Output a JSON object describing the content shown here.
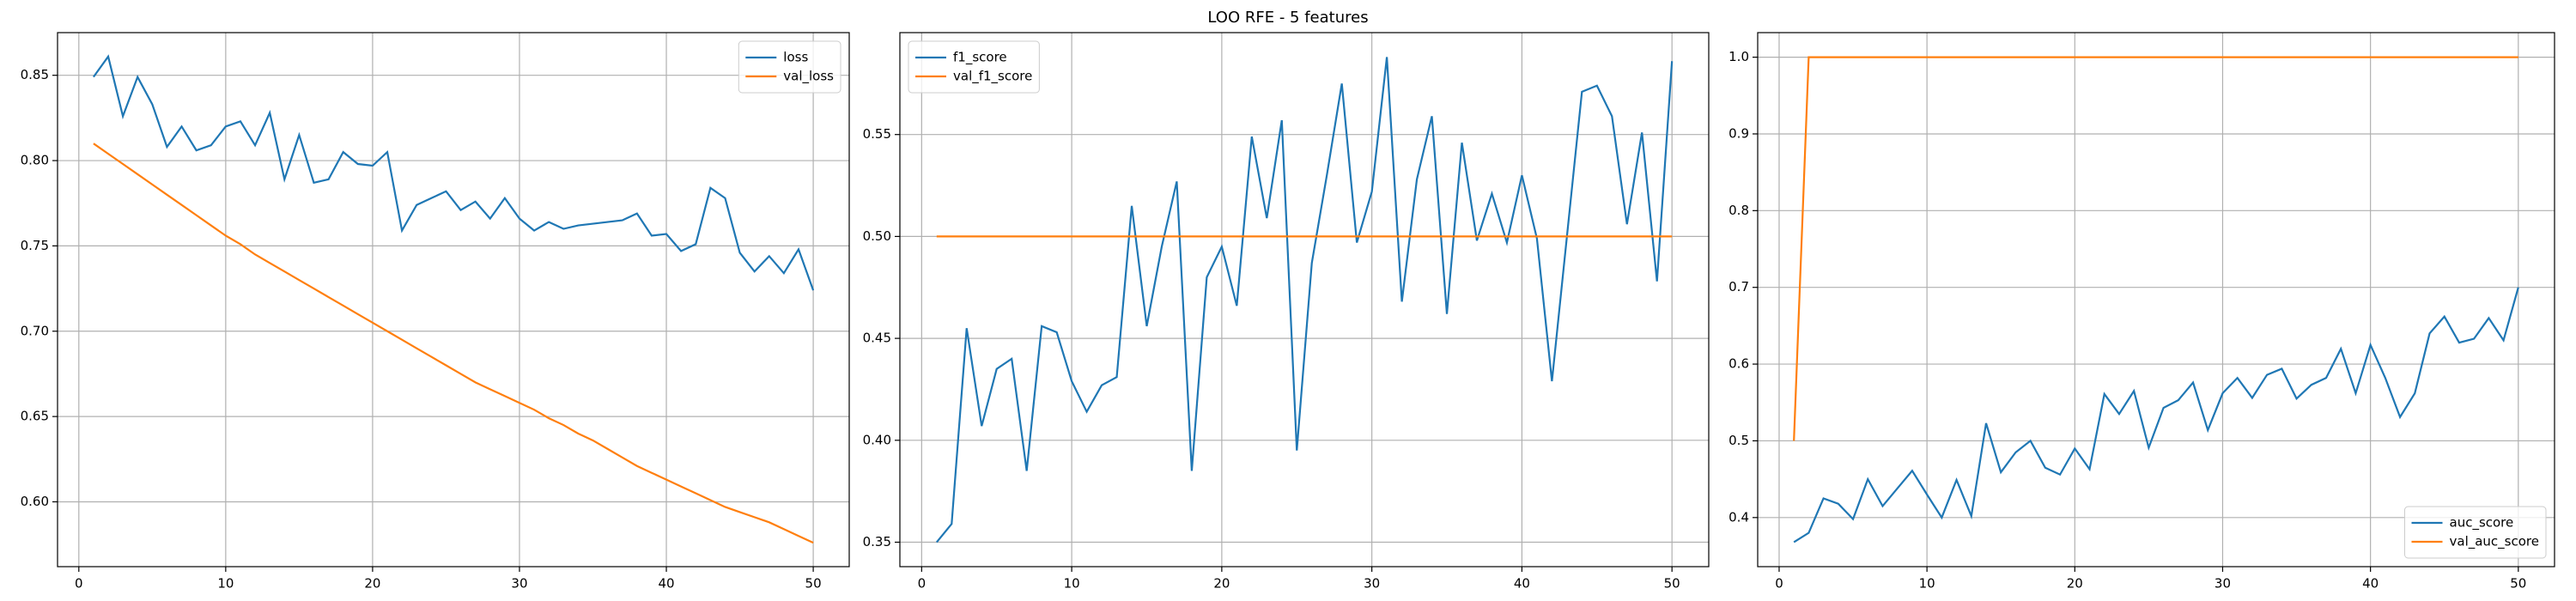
{
  "title": "LOO RFE - 5 features",
  "chart_data": [
    {
      "type": "line",
      "x": [
        1,
        2,
        3,
        4,
        5,
        6,
        7,
        8,
        9,
        10,
        11,
        12,
        13,
        14,
        15,
        16,
        17,
        18,
        19,
        20,
        21,
        22,
        23,
        24,
        25,
        26,
        27,
        28,
        29,
        30,
        31,
        32,
        33,
        34,
        35,
        36,
        37,
        38,
        39,
        40,
        41,
        42,
        43,
        44,
        45,
        46,
        47,
        48,
        49,
        50
      ],
      "series": [
        {
          "name": "loss",
          "color": "#1f77b4",
          "values": [
            0.849,
            0.861,
            0.826,
            0.849,
            0.833,
            0.808,
            0.82,
            0.806,
            0.809,
            0.82,
            0.823,
            0.809,
            0.828,
            0.789,
            0.815,
            0.787,
            0.789,
            0.805,
            0.798,
            0.797,
            0.805,
            0.759,
            0.774,
            0.778,
            0.782,
            0.771,
            0.776,
            0.766,
            0.778,
            0.766,
            0.759,
            0.764,
            0.76,
            0.762,
            0.763,
            0.764,
            0.765,
            0.769,
            0.756,
            0.757,
            0.747,
            0.751,
            0.784,
            0.778,
            0.746,
            0.735,
            0.744,
            0.734,
            0.748,
            0.724
          ]
        },
        {
          "name": "val_loss",
          "color": "#ff7f0e",
          "values": [
            0.81,
            0.804,
            0.798,
            0.792,
            0.786,
            0.78,
            0.774,
            0.768,
            0.762,
            0.756,
            0.751,
            0.745,
            0.74,
            0.735,
            0.73,
            0.725,
            0.72,
            0.715,
            0.71,
            0.705,
            0.7,
            0.695,
            0.69,
            0.685,
            0.68,
            0.675,
            0.67,
            0.666,
            0.662,
            0.658,
            0.654,
            0.649,
            0.645,
            0.64,
            0.636,
            0.631,
            0.626,
            0.621,
            0.617,
            0.613,
            0.609,
            0.605,
            0.601,
            0.597,
            0.594,
            0.591,
            0.588,
            0.584,
            0.58,
            0.576
          ]
        }
      ],
      "xlim": [
        -1.45,
        52.45
      ],
      "xticks": [
        0,
        10,
        20,
        30,
        40,
        50
      ],
      "ylim": [
        0.562,
        0.875
      ],
      "yticks": [
        {
          "value": 0.6,
          "label": "0.60"
        },
        0.65,
        {
          "value": 0.7,
          "label": "0.70"
        },
        0.75,
        {
          "value": 0.8,
          "label": "0.80"
        },
        0.85
      ],
      "grid": true,
      "legend": "upper right"
    },
    {
      "type": "line",
      "x": [
        1,
        2,
        3,
        4,
        5,
        6,
        7,
        8,
        9,
        10,
        11,
        12,
        13,
        14,
        15,
        16,
        17,
        18,
        19,
        20,
        21,
        22,
        23,
        24,
        25,
        26,
        27,
        28,
        29,
        30,
        31,
        32,
        33,
        34,
        35,
        36,
        37,
        38,
        39,
        40,
        41,
        42,
        43,
        44,
        45,
        46,
        47,
        48,
        49,
        50
      ],
      "series": [
        {
          "name": "f1_score",
          "color": "#1f77b4",
          "values": [
            0.35,
            0.359,
            0.455,
            0.407,
            0.435,
            0.44,
            0.385,
            0.456,
            0.453,
            0.429,
            0.414,
            0.427,
            0.431,
            0.515,
            0.456,
            0.495,
            0.527,
            0.385,
            0.48,
            0.495,
            0.466,
            0.549,
            0.509,
            0.557,
            0.395,
            0.487,
            0.53,
            0.575,
            0.497,
            0.522,
            0.588,
            0.468,
            0.528,
            0.559,
            0.462,
            0.546,
            0.498,
            0.521,
            0.497,
            0.53,
            0.499,
            0.429,
            0.5,
            0.571,
            0.574,
            0.559,
            0.506,
            0.551,
            0.478,
            0.586
          ]
        },
        {
          "name": "val_f1_score",
          "color": "#ff7f0e",
          "values": [
            0.5,
            0.5,
            0.5,
            0.5,
            0.5,
            0.5,
            0.5,
            0.5,
            0.5,
            0.5,
            0.5,
            0.5,
            0.5,
            0.5,
            0.5,
            0.5,
            0.5,
            0.5,
            0.5,
            0.5,
            0.5,
            0.5,
            0.5,
            0.5,
            0.5,
            0.5,
            0.5,
            0.5,
            0.5,
            0.5,
            0.5,
            0.5,
            0.5,
            0.5,
            0.5,
            0.5,
            0.5,
            0.5,
            0.5,
            0.5,
            0.5,
            0.5,
            0.5,
            0.5,
            0.5,
            0.5,
            0.5,
            0.5,
            0.5,
            0.5
          ]
        }
      ],
      "xlim": [
        -1.45,
        52.45
      ],
      "xticks": [
        0,
        10,
        20,
        30,
        40,
        50
      ],
      "ylim": [
        0.338,
        0.6
      ],
      "yticks": [
        0.35,
        {
          "value": 0.4,
          "label": "0.40"
        },
        0.45,
        {
          "value": 0.5,
          "label": "0.50"
        },
        0.55
      ],
      "grid": true,
      "legend": "upper left"
    },
    {
      "type": "line",
      "x": [
        1,
        2,
        3,
        4,
        5,
        6,
        7,
        8,
        9,
        10,
        11,
        12,
        13,
        14,
        15,
        16,
        17,
        18,
        19,
        20,
        21,
        22,
        23,
        24,
        25,
        26,
        27,
        28,
        29,
        30,
        31,
        32,
        33,
        34,
        35,
        36,
        37,
        38,
        39,
        40,
        41,
        42,
        43,
        44,
        45,
        46,
        47,
        48,
        49,
        50
      ],
      "series": [
        {
          "name": "auc_score",
          "color": "#1f77b4",
          "values": [
            0.368,
            0.38,
            0.425,
            0.418,
            0.398,
            0.45,
            0.415,
            0.438,
            0.461,
            0.43,
            0.4,
            0.449,
            0.402,
            0.523,
            0.459,
            0.485,
            0.5,
            0.465,
            0.456,
            0.49,
            0.463,
            0.561,
            0.535,
            0.565,
            0.491,
            0.543,
            0.553,
            0.576,
            0.514,
            0.562,
            0.582,
            0.556,
            0.586,
            0.594,
            0.555,
            0.573,
            0.582,
            0.62,
            0.562,
            0.625,
            0.582,
            0.531,
            0.562,
            0.64,
            0.662,
            0.628,
            0.633,
            0.66,
            0.631,
            0.7
          ]
        },
        {
          "name": "val_auc_score",
          "color": "#ff7f0e",
          "values": [
            0.5,
            1,
            1,
            1,
            1,
            1,
            1,
            1,
            1,
            1,
            1,
            1,
            1,
            1,
            1,
            1,
            1,
            1,
            1,
            1,
            1,
            1,
            1,
            1,
            1,
            1,
            1,
            1,
            1,
            1,
            1,
            1,
            1,
            1,
            1,
            1,
            1,
            1,
            1,
            1,
            1,
            1,
            1,
            1,
            1,
            1,
            1,
            1,
            1,
            1
          ]
        }
      ],
      "xlim": [
        -1.45,
        52.45
      ],
      "xticks": [
        0,
        10,
        20,
        30,
        40,
        50
      ],
      "ylim": [
        0.336,
        1.032
      ],
      "yticks": [
        0.4,
        0.5,
        0.6,
        0.7,
        0.8,
        0.9,
        {
          "value": 1,
          "label": "1.0"
        }
      ],
      "grid": true,
      "legend": "lower right"
    }
  ]
}
